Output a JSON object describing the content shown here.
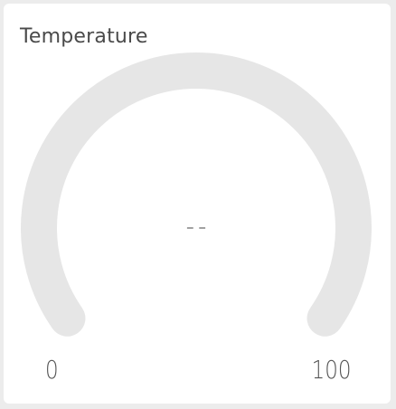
{
  "widget": {
    "title": "Temperature",
    "value_text": "--",
    "min_label": "0",
    "max_label": "100",
    "value": null,
    "min": 0,
    "max": 100,
    "track_color": "#e6e6e6",
    "fill_color": "#4caf50"
  }
}
